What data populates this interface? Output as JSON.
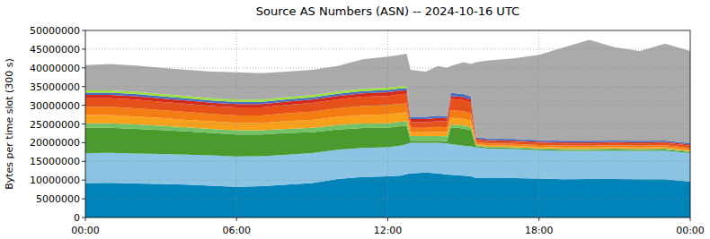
{
  "chart_data": {
    "type": "area",
    "stacked": true,
    "grid": true,
    "title": "Source AS Numbers (ASN) -- 2024-10-16 UTC",
    "y_label": "Bytes per time slot (300 s)",
    "x": [
      0,
      1,
      2,
      3,
      4,
      5,
      6,
      7,
      8,
      9,
      10,
      11,
      12,
      12.5,
      12.75,
      12.9,
      13.5,
      14,
      14.35,
      14.5,
      15,
      15.3,
      15.5,
      16,
      17,
      18,
      19,
      20,
      21,
      22,
      23,
      24
    ],
    "xlim": [
      0,
      24
    ],
    "xticks": [
      {
        "value": 0,
        "label": "00:00"
      },
      {
        "value": 6,
        "label": "06:00"
      },
      {
        "value": 12,
        "label": "12:00"
      },
      {
        "value": 18,
        "label": "18:00"
      },
      {
        "value": 24,
        "label": "00:00"
      }
    ],
    "ylim": [
      0,
      50000000
    ],
    "yticks": [
      0,
      5000000,
      10000000,
      15000000,
      20000000,
      25000000,
      30000000,
      35000000,
      40000000,
      45000000,
      50000000
    ],
    "series": [
      {
        "color": "#0083b9",
        "values": [
          9200000,
          9300000,
          9100000,
          9000000,
          8800000,
          8500000,
          8200000,
          8400000,
          8800000,
          9200000,
          10300000,
          10800000,
          11000000,
          11200000,
          11600000,
          11800000,
          12000000,
          11800000,
          11500000,
          11400000,
          11200000,
          11000000,
          10600000,
          10500000,
          10500000,
          10400000,
          10200000,
          10300000,
          10300000,
          10200000,
          10200000,
          9600000
        ]
      },
      {
        "color": "#8cc4e4",
        "values": [
          8000000,
          8000000,
          8000000,
          8000000,
          8000000,
          8100000,
          8100000,
          8000000,
          8000000,
          8000000,
          7800000,
          7800000,
          7800000,
          8000000,
          8000000,
          8200000,
          8000000,
          8200000,
          8300000,
          8200000,
          8000000,
          8000000,
          8200000,
          7900000,
          7800000,
          7600000,
          7600000,
          7500000,
          7600000,
          7600000,
          7700000,
          7600000
        ]
      },
      {
        "color": "#4a9a2e",
        "values": [
          6800000,
          6700000,
          6600000,
          6400000,
          6200000,
          6000000,
          5900000,
          5800000,
          5800000,
          5600000,
          5400000,
          5300000,
          5200000,
          5200000,
          5000000,
          500000,
          500000,
          500000,
          600000,
          4500000,
          4600000,
          4400000,
          300000,
          300000,
          300000,
          300000,
          300000,
          300000,
          300000,
          300000,
          300000,
          300000
        ]
      },
      {
        "color": "#74c267",
        "values": [
          1200000,
          1200000,
          1200000,
          1100000,
          1100000,
          1100000,
          1100000,
          1100000,
          1100000,
          1200000,
          1200000,
          1200000,
          1200000,
          1200000,
          1100000,
          1300000,
          1300000,
          1300000,
          1300000,
          800000,
          800000,
          800000,
          200000,
          200000,
          200000,
          200000,
          200000,
          200000,
          200000,
          200000,
          200000,
          200000
        ]
      },
      {
        "color": "#f9a11b",
        "values": [
          2200000,
          2200000,
          2100000,
          2100000,
          2000000,
          2000000,
          2000000,
          2000000,
          2100000,
          2100000,
          2200000,
          2300000,
          2400000,
          2400000,
          2400000,
          1000000,
          1000000,
          1100000,
          1100000,
          1800000,
          1800000,
          1700000,
          400000,
          400000,
          400000,
          400000,
          400000,
          400000,
          400000,
          400000,
          400000,
          400000
        ]
      },
      {
        "color": "#f37d12",
        "values": [
          2200000,
          2200000,
          2200000,
          2100000,
          2100000,
          2000000,
          2000000,
          2000000,
          2100000,
          2200000,
          2300000,
          2400000,
          2400000,
          2400000,
          2400000,
          1200000,
          1200000,
          1300000,
          1300000,
          2000000,
          2000000,
          1900000,
          500000,
          500000,
          500000,
          500000,
          500000,
          500000,
          500000,
          500000,
          500000,
          500000
        ]
      },
      {
        "color": "#e8501a",
        "values": [
          2300000,
          2300000,
          2300000,
          2200000,
          2200000,
          2100000,
          2100000,
          2100000,
          2200000,
          2300000,
          2400000,
          2500000,
          2500000,
          2600000,
          2600000,
          1500000,
          1500000,
          1600000,
          1600000,
          3000000,
          3000000,
          2900000,
          600000,
          600000,
          600000,
          600000,
          600000,
          600000,
          600000,
          600000,
          600000,
          600000
        ]
      },
      {
        "color": "#d42a1e",
        "values": [
          900000,
          900000,
          900000,
          900000,
          900000,
          900000,
          900000,
          900000,
          900000,
          900000,
          900000,
          900000,
          1000000,
          900000,
          900000,
          800000,
          800000,
          800000,
          800000,
          800000,
          800000,
          800000,
          300000,
          300000,
          300000,
          300000,
          300000,
          300000,
          300000,
          300000,
          300000,
          300000
        ]
      },
      {
        "color": "#4a6ec0",
        "values": [
          600000,
          600000,
          600000,
          600000,
          600000,
          600000,
          600000,
          600000,
          600000,
          600000,
          600000,
          600000,
          600000,
          600000,
          600000,
          600000,
          600000,
          600000,
          600000,
          800000,
          800000,
          800000,
          400000,
          400000,
          400000,
          400000,
          400000,
          400000,
          400000,
          400000,
          400000,
          400000
        ]
      },
      {
        "color": "#9be23a",
        "values": [
          600000,
          600000,
          600000,
          600000,
          600000,
          600000,
          600000,
          600000,
          600000,
          600000,
          600000,
          600000,
          600000,
          600000,
          500000,
          0,
          0,
          0,
          0,
          0,
          0,
          0,
          0,
          0,
          0,
          0,
          0,
          0,
          0,
          0,
          0,
          0
        ]
      },
      {
        "color": "#aaaaaa",
        "values": [
          6700000,
          7000000,
          7000000,
          7000000,
          7000000,
          7100000,
          7300000,
          7100000,
          6800000,
          6800000,
          6800000,
          7900000,
          8300000,
          8400000,
          8700000,
          12600000,
          12100000,
          13300000,
          12900000,
          7200000,
          8500000,
          8700000,
          20000000,
          20900000,
          21500000,
          22800000,
          25000000,
          27000000,
          24900000,
          24000000,
          25900000,
          24600000
        ]
      }
    ]
  }
}
